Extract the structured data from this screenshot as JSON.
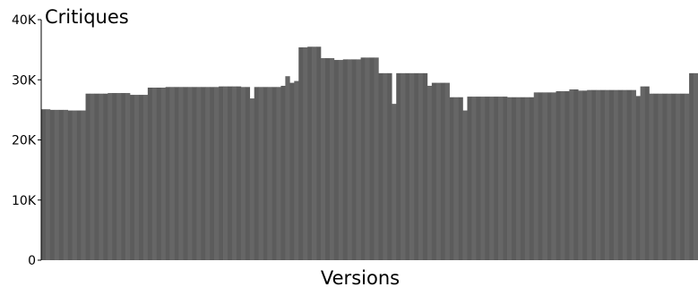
{
  "chart_data": {
    "type": "bar",
    "ylabel": "Critiques",
    "xlabel": "Versions",
    "ylim": [
      0,
      40000
    ],
    "yticks": [
      {
        "value": 0,
        "label": "0"
      },
      {
        "value": 10000,
        "label": "10K"
      },
      {
        "value": 20000,
        "label": "20K"
      },
      {
        "value": 30000,
        "label": "30K"
      },
      {
        "value": 40000,
        "label": "40K"
      }
    ],
    "bar_color": "#5c5c5c",
    "bar_color_alt": "#666666",
    "values": [
      25100,
      25100,
      25000,
      25000,
      25000,
      25000,
      24900,
      24900,
      24900,
      24900,
      27700,
      27700,
      27700,
      27700,
      27700,
      27800,
      27800,
      27800,
      27800,
      27800,
      27500,
      27500,
      27500,
      27500,
      28700,
      28700,
      28700,
      28700,
      28800,
      28800,
      28800,
      28800,
      28800,
      28800,
      28800,
      28800,
      28800,
      28800,
      28800,
      28800,
      28900,
      28900,
      28900,
      28900,
      28900,
      28800,
      28800,
      26900,
      28800,
      28800,
      28800,
      28800,
      28800,
      28800,
      29000,
      30600,
      29500,
      29800,
      35400,
      35400,
      35500,
      35500,
      35500,
      33600,
      33600,
      33600,
      33300,
      33300,
      33400,
      33400,
      33400,
      33400,
      33700,
      33700,
      33700,
      33700,
      31100,
      31100,
      31100,
      26000,
      31100,
      31100,
      31100,
      31100,
      31100,
      31100,
      31100,
      29000,
      29500,
      29500,
      29500,
      29500,
      27100,
      27100,
      27100,
      24900,
      27200,
      27200,
      27200,
      27200,
      27200,
      27200,
      27200,
      27200,
      27200,
      27100,
      27100,
      27100,
      27100,
      27100,
      27100,
      27900,
      27900,
      27900,
      27900,
      27900,
      28100,
      28100,
      28100,
      28400,
      28400,
      28200,
      28200,
      28300,
      28300,
      28300,
      28300,
      28300,
      28300,
      28300,
      28300,
      28300,
      28300,
      28300,
      27300,
      28900,
      28900,
      27700,
      27700,
      27700,
      27700,
      27700,
      27700,
      27700,
      27700,
      27700,
      31100,
      31100
    ]
  }
}
